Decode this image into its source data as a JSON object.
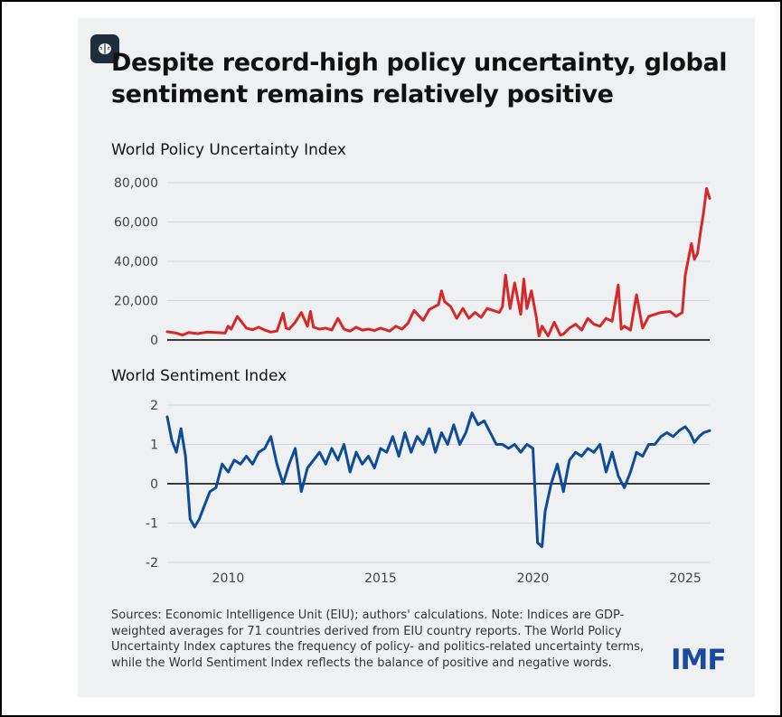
{
  "title": "Despite record-high policy uncertainty, global sentiment remains relatively positive",
  "sources": "Sources: Economic Intelligence Unit (EIU); authors' calculations. Note: Indices are GDP-weighted averages for 71 countries derived from EIU country reports. The World Policy Uncertainty Index captures the frequency of policy- and politics-related uncertainty terms, while the World Sentiment Index reflects the balance of positive and negative words.",
  "logo": "IMF",
  "colors": {
    "uncertainty_line": "#d62828",
    "sentiment_line": "#0f4c97",
    "background": "#eef0f2"
  },
  "chart_data": [
    {
      "type": "line",
      "title": "World Policy Uncertainty Index",
      "xlabel": "",
      "ylabel": "",
      "xlim": [
        2008.0,
        2025.8
      ],
      "ylim": [
        0,
        80000
      ],
      "yticks": [
        0,
        20000,
        40000,
        60000,
        80000
      ],
      "ytick_labels": [
        "0",
        "20,000",
        "40,000",
        "60,000",
        "80,000"
      ],
      "grid": true,
      "series": [
        {
          "name": "World Policy Uncertainty Index",
          "color": "#d62828",
          "x": [
            2008.0,
            2008.3,
            2008.5,
            2008.7,
            2009.0,
            2009.3,
            2009.6,
            2009.9,
            2010.0,
            2010.1,
            2010.3,
            2010.6,
            2010.8,
            2011.0,
            2011.2,
            2011.4,
            2011.6,
            2011.8,
            2011.9,
            2012.0,
            2012.2,
            2012.4,
            2012.6,
            2012.7,
            2012.8,
            2013.0,
            2013.2,
            2013.4,
            2013.6,
            2013.8,
            2014.0,
            2014.2,
            2014.4,
            2014.6,
            2014.8,
            2015.0,
            2015.3,
            2015.5,
            2015.7,
            2015.9,
            2016.1,
            2016.4,
            2016.6,
            2016.9,
            2017.0,
            2017.1,
            2017.3,
            2017.5,
            2017.7,
            2017.9,
            2018.1,
            2018.3,
            2018.5,
            2018.7,
            2018.9,
            2019.0,
            2019.1,
            2019.25,
            2019.4,
            2019.6,
            2019.7,
            2019.8,
            2019.95,
            2020.1,
            2020.2,
            2020.3,
            2020.5,
            2020.7,
            2020.9,
            2021.0,
            2021.2,
            2021.4,
            2021.6,
            2021.8,
            2022.0,
            2022.2,
            2022.4,
            2022.6,
            2022.8,
            2022.9,
            2023.0,
            2023.2,
            2023.4,
            2023.6,
            2023.8,
            2024.0,
            2024.2,
            2024.5,
            2024.7,
            2024.9,
            2025.0,
            2025.2,
            2025.3,
            2025.4,
            2025.5,
            2025.6,
            2025.7,
            2025.8
          ],
          "values": [
            4200,
            3500,
            2500,
            3800,
            3200,
            4000,
            3800,
            3500,
            7000,
            5500,
            12000,
            6000,
            5200,
            6500,
            5000,
            4000,
            4500,
            13500,
            6000,
            5500,
            9000,
            14000,
            7000,
            14500,
            6500,
            5500,
            6000,
            5000,
            11000,
            5500,
            4500,
            6500,
            5000,
            5500,
            4800,
            6000,
            4500,
            7000,
            5500,
            8500,
            15000,
            10000,
            15500,
            18000,
            25000,
            19500,
            17000,
            11000,
            16000,
            11000,
            14000,
            11500,
            16000,
            15000,
            14000,
            17000,
            33000,
            16000,
            29000,
            13000,
            31000,
            16000,
            25000,
            12500,
            2000,
            7000,
            2000,
            9000,
            2500,
            3000,
            6000,
            8000,
            5000,
            11000,
            8000,
            7000,
            11000,
            9500,
            28000,
            5500,
            7000,
            5000,
            23000,
            6000,
            12000,
            13000,
            14000,
            14500,
            12000,
            14000,
            33000,
            49000,
            41000,
            44000,
            55000,
            65000,
            77000,
            72000
          ]
        }
      ]
    },
    {
      "type": "line",
      "title": "World Sentiment Index",
      "xlabel": "",
      "ylabel": "",
      "xlim": [
        2008.0,
        2025.8
      ],
      "ylim": [
        -2,
        2
      ],
      "yticks": [
        -2,
        -1,
        0,
        1,
        2
      ],
      "ytick_labels": [
        "-2",
        "-1",
        "0",
        "1",
        "2"
      ],
      "xticks": [
        2010,
        2015,
        2020,
        2025
      ],
      "xtick_labels": [
        "2010",
        "2015",
        "2020",
        "2025"
      ],
      "grid": true,
      "series": [
        {
          "name": "World Sentiment Index",
          "color": "#0f4c97",
          "x": [
            2008.0,
            2008.15,
            2008.3,
            2008.45,
            2008.6,
            2008.75,
            2008.9,
            2009.05,
            2009.2,
            2009.4,
            2009.6,
            2009.8,
            2010.0,
            2010.2,
            2010.4,
            2010.6,
            2010.8,
            2011.0,
            2011.2,
            2011.4,
            2011.6,
            2011.8,
            2012.0,
            2012.2,
            2012.4,
            2012.6,
            2012.8,
            2013.0,
            2013.2,
            2013.4,
            2013.6,
            2013.8,
            2014.0,
            2014.2,
            2014.4,
            2014.6,
            2014.8,
            2015.0,
            2015.2,
            2015.4,
            2015.6,
            2015.8,
            2016.0,
            2016.2,
            2016.4,
            2016.6,
            2016.8,
            2017.0,
            2017.2,
            2017.4,
            2017.6,
            2017.8,
            2018.0,
            2018.2,
            2018.4,
            2018.6,
            2018.8,
            2019.0,
            2019.2,
            2019.4,
            2019.6,
            2019.8,
            2020.0,
            2020.15,
            2020.3,
            2020.4,
            2020.6,
            2020.8,
            2021.0,
            2021.2,
            2021.4,
            2021.6,
            2021.8,
            2022.0,
            2022.2,
            2022.4,
            2022.6,
            2022.8,
            2023.0,
            2023.2,
            2023.4,
            2023.6,
            2023.8,
            2024.0,
            2024.2,
            2024.4,
            2024.6,
            2024.8,
            2025.0,
            2025.15,
            2025.3,
            2025.45,
            2025.6,
            2025.8
          ],
          "values": [
            1.7,
            1.1,
            0.8,
            1.4,
            0.7,
            -0.9,
            -1.1,
            -0.9,
            -0.6,
            -0.2,
            -0.1,
            0.5,
            0.3,
            0.6,
            0.5,
            0.7,
            0.5,
            0.8,
            0.9,
            1.2,
            0.5,
            0.0,
            0.5,
            0.9,
            -0.2,
            0.4,
            0.6,
            0.8,
            0.5,
            0.9,
            0.6,
            1.0,
            0.3,
            0.8,
            0.5,
            0.7,
            0.4,
            0.9,
            0.8,
            1.2,
            0.7,
            1.3,
            0.8,
            1.2,
            1.0,
            1.4,
            0.8,
            1.3,
            1.0,
            1.5,
            1.0,
            1.3,
            1.8,
            1.5,
            1.6,
            1.3,
            1.0,
            1.0,
            0.9,
            1.0,
            0.8,
            1.0,
            0.9,
            -1.5,
            -1.6,
            -0.7,
            0.0,
            0.5,
            -0.2,
            0.6,
            0.8,
            0.7,
            0.9,
            0.8,
            1.0,
            0.3,
            0.8,
            0.2,
            -0.1,
            0.3,
            0.8,
            0.7,
            1.0,
            1.0,
            1.2,
            1.3,
            1.2,
            1.35,
            1.45,
            1.3,
            1.05,
            1.2,
            1.3,
            1.35
          ]
        }
      ]
    }
  ]
}
